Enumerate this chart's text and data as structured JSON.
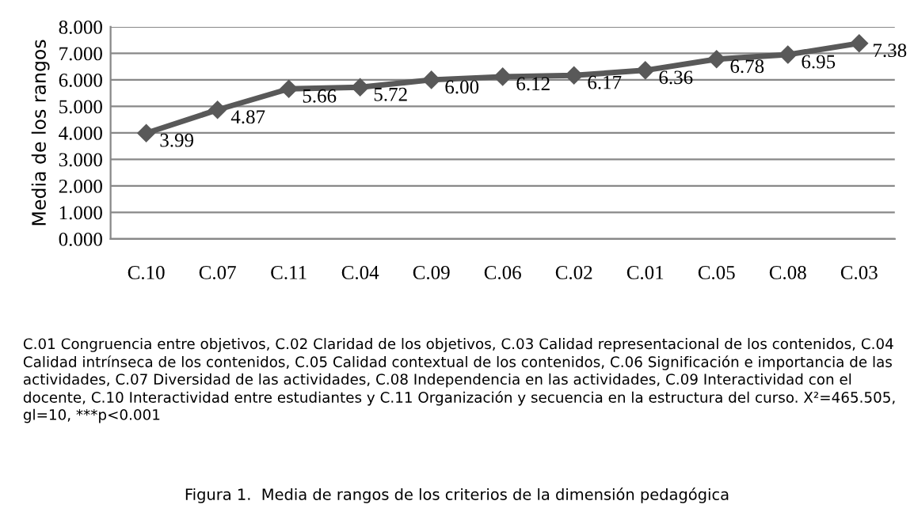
{
  "chart_data": {
    "type": "line",
    "ylabel": "Media de los rangos",
    "categories": [
      "C.10",
      "C.07",
      "C.11",
      "C.04",
      "C.09",
      "C.06",
      "C.02",
      "C.01",
      "C.05",
      "C.08",
      "C.03"
    ],
    "series": [
      {
        "color": "#595959",
        "values": [
          3.99,
          4.87,
          5.66,
          5.72,
          6.0,
          6.12,
          6.17,
          6.36,
          6.78,
          6.95,
          7.38
        ],
        "value_labels": [
          "3.99",
          "4.87",
          "5.66",
          "5.72",
          "6.00",
          "6.12",
          "6.17",
          "6.36",
          "6.78",
          "6.95",
          "7.38"
        ]
      }
    ],
    "ylim": [
      0,
      8
    ],
    "yticks": [
      {
        "value": 0,
        "label": "0.000"
      },
      {
        "value": 1,
        "label": "1.000"
      },
      {
        "value": 2,
        "label": "2.000"
      },
      {
        "value": 3,
        "label": "3.000"
      },
      {
        "value": 4,
        "label": "4.000"
      },
      {
        "value": 5,
        "label": "5.000"
      },
      {
        "value": 6,
        "label": "6.000"
      },
      {
        "value": 7,
        "label": "7.000"
      },
      {
        "value": 8,
        "label": "8.000"
      }
    ],
    "grid": "y",
    "marker": "diamond",
    "line_style": "solid",
    "legend": false,
    "annotations": [
      "C.01 Congruencia entre objetivos, C.02 Claridad de los objetivos, C.03 Calidad representacional de los contenidos, C.04 Calidad intrínseca de los contenidos, C.05 Calidad contextual de los contenidos, C.06 Significación e importancia de las actividades, C.07 Diversidad de las actividades, C.08 Independencia en las actividades, C.09 Interactividad con el docente, C.10 Interactividad entre estudiantes y C.11 Organización y secuencia en la estructura del curso. X²=465.505, gl=10, ***p<0.001",
      "Figura 1.  Media de rangos de los criterios de la dimensión pedagógica"
    ]
  }
}
